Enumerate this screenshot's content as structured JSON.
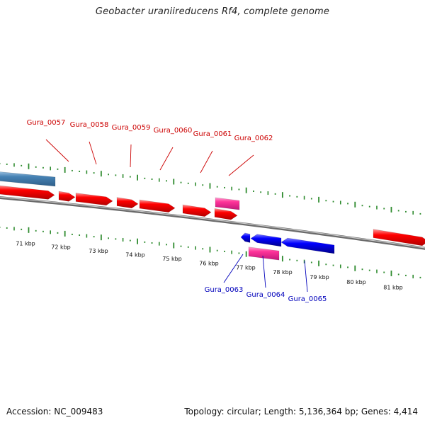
{
  "title": "Geobacter uraniireducens Rf4, complete genome",
  "accession": "Accession: NC_009483",
  "summary": "Topology: circular; Length: 5,136,364 bp; Genes: 4,414",
  "colors": {
    "forward_gene": "#ff0000",
    "reverse_gene": "#0000ff",
    "rna": "#ff3399",
    "other_feature": "#4682b4",
    "backbone": "#8c8c8c",
    "tick": "#2e8b2e",
    "forward_label": "#cc0000",
    "reverse_label": "#0000bb"
  },
  "kbp_labels": [
    "71 kbp",
    "72 kbp",
    "73 kbp",
    "74 kbp",
    "75 kbp",
    "76 kbp",
    "77 kbp",
    "78 kbp",
    "79 kbp",
    "80 kbp",
    "81 kbp"
  ],
  "gene_labels": {
    "forward": [
      "Gura_0057",
      "Gura_0058",
      "Gura_0059",
      "Gura_0060",
      "Gura_0061",
      "Gura_0062"
    ],
    "reverse": [
      "Gura_0063",
      "Gura_0064",
      "Gura_0065"
    ]
  }
}
